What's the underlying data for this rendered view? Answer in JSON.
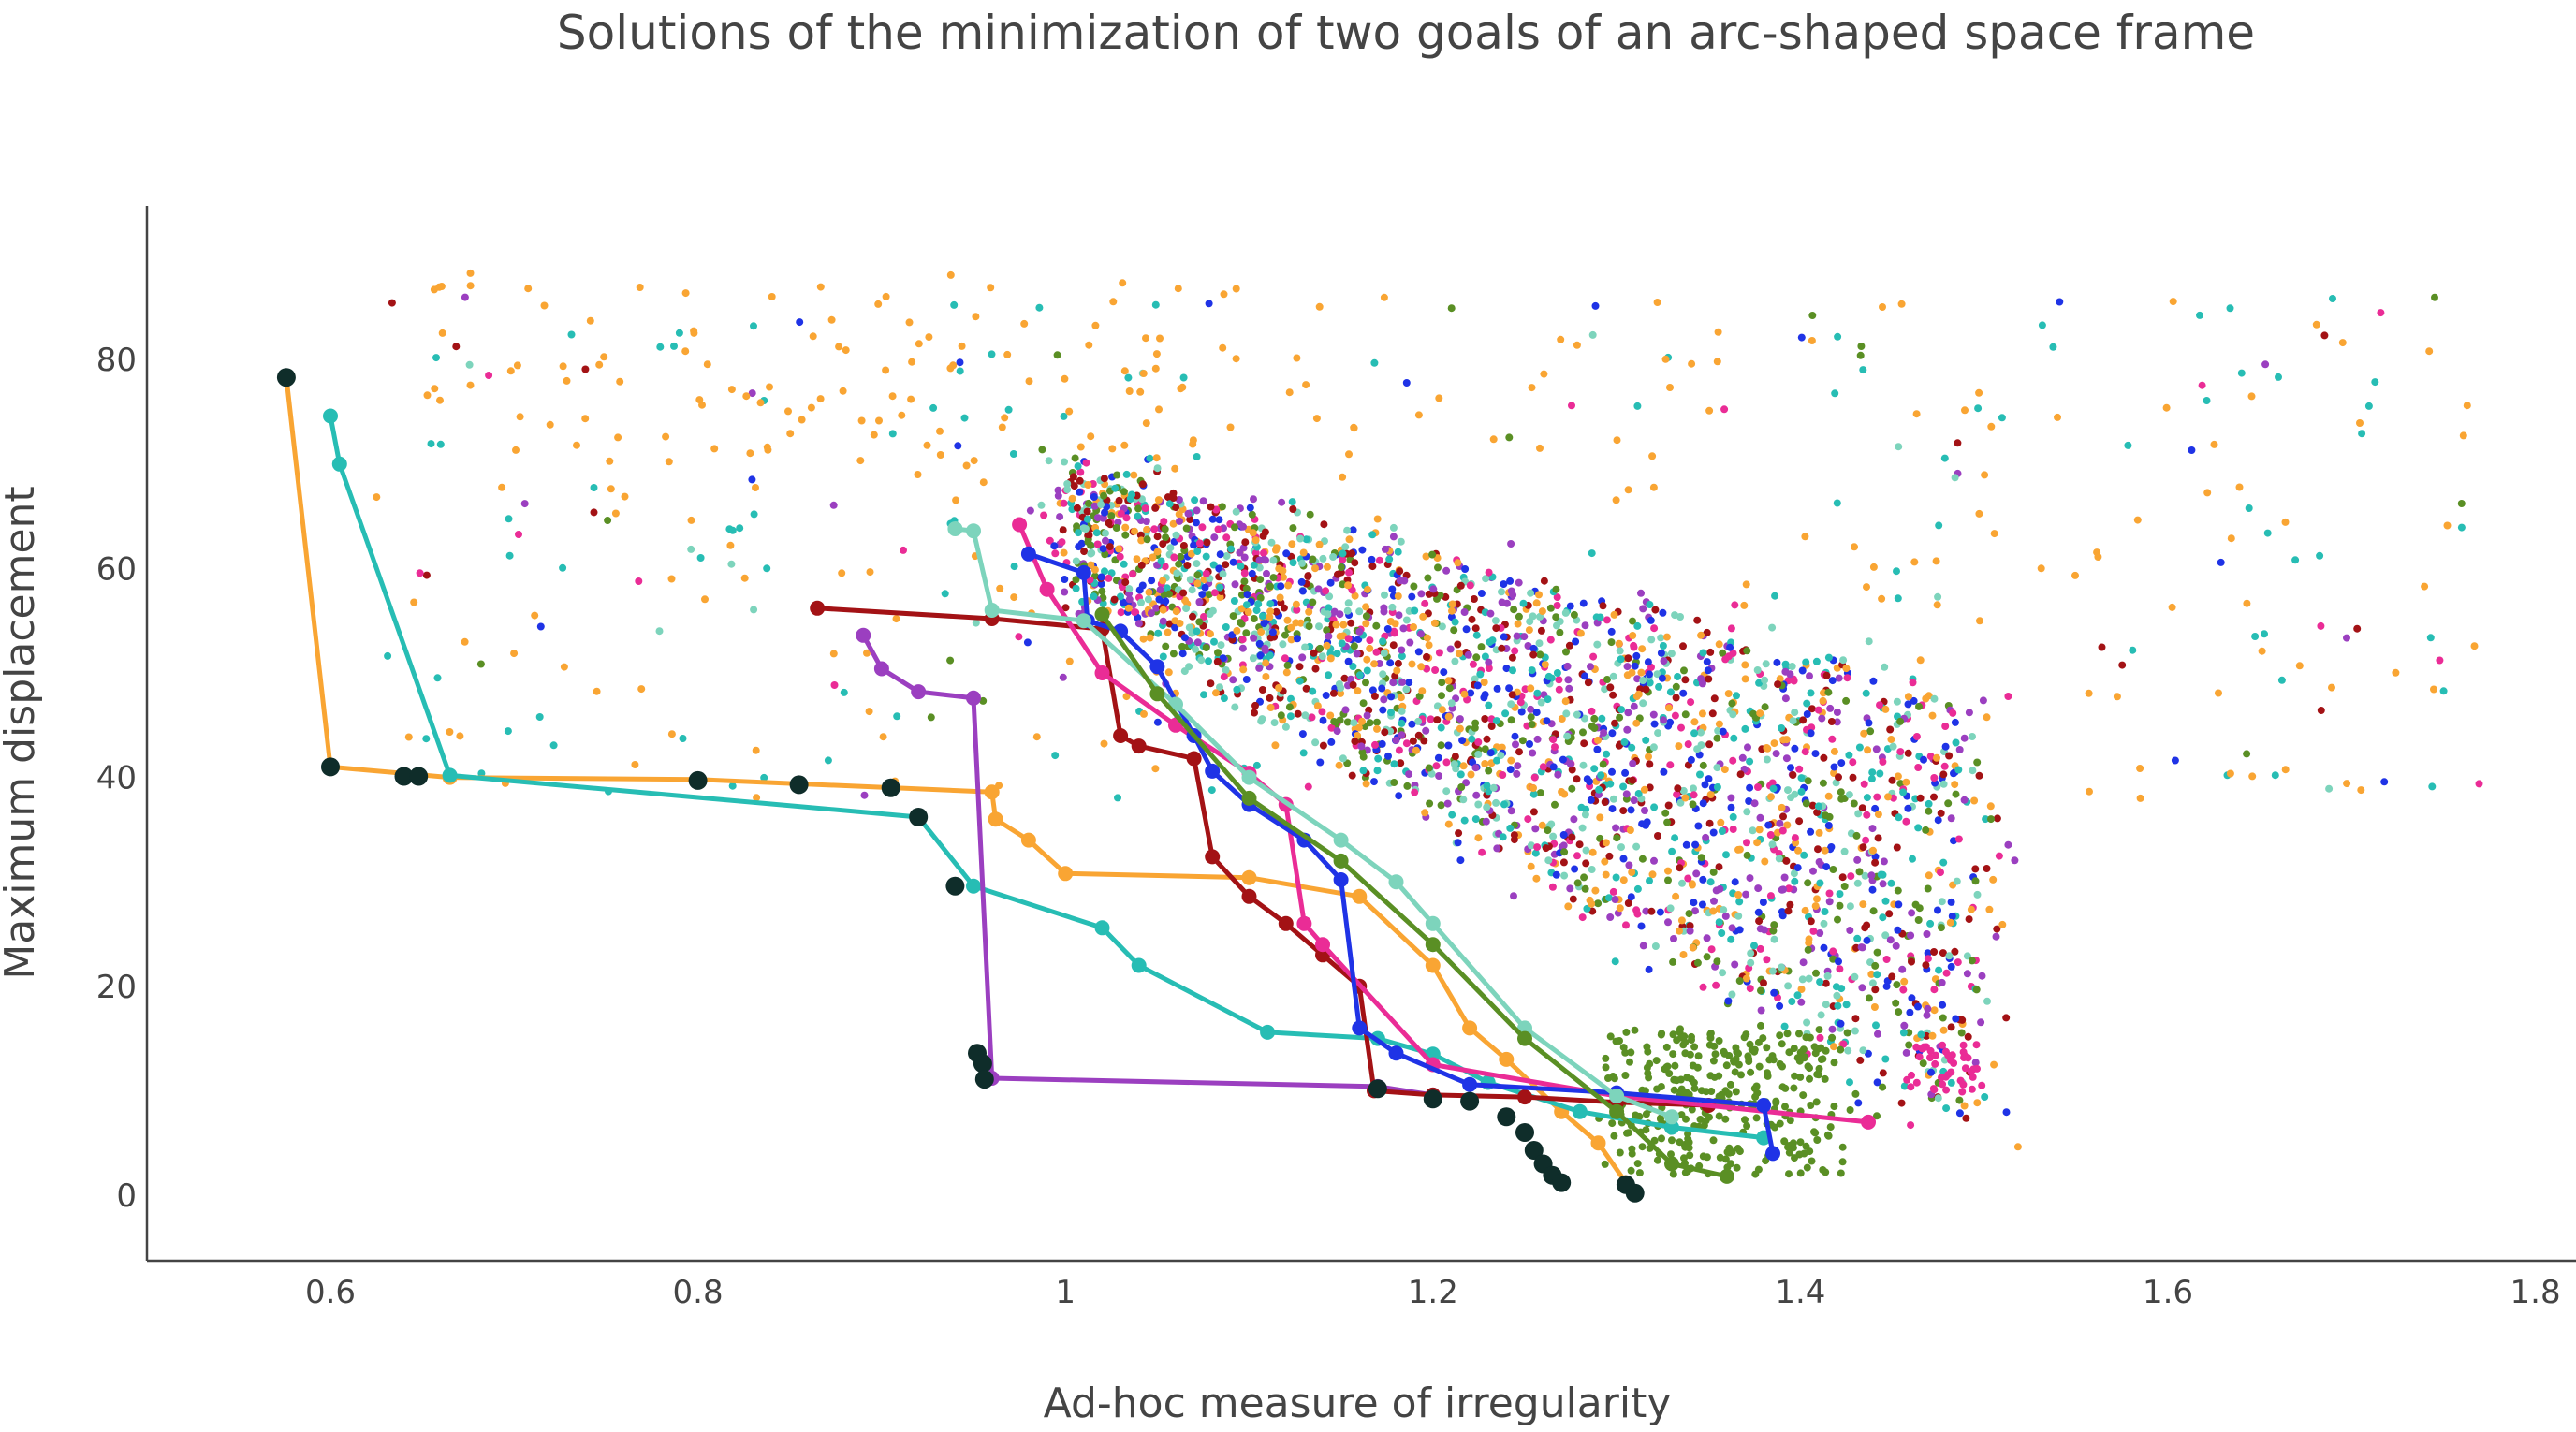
{
  "chart_data": {
    "type": "scatter",
    "title": "Solutions of the minimization of two goals of an arc-shaped space frame",
    "xlabel": "Ad-hoc measure of irregularity",
    "ylabel": "Maximum displacement",
    "xlim": [
      0.5,
      1.81
    ],
    "ylim": [
      -6,
      94
    ],
    "xticks": [
      0.6,
      0.8,
      1,
      1.2,
      1.4,
      1.6,
      1.8
    ],
    "xtick_labels": [
      "0.6",
      "0.8",
      "1",
      "1.2",
      "1.4",
      "1.6",
      "1.8"
    ],
    "yticks": [
      0,
      20,
      40,
      60,
      80
    ],
    "ytick_labels": [
      "0",
      "20",
      "40",
      "60",
      "80"
    ],
    "grid": false,
    "legend": "none",
    "front_series": [
      {
        "color": "#f9a533",
        "points": [
          [
            0.576,
            78.3
          ],
          [
            0.6,
            41.0
          ],
          [
            0.665,
            40.0
          ],
          [
            0.8,
            39.8
          ],
          [
            0.96,
            38.6
          ],
          [
            0.962,
            36.0
          ],
          [
            0.98,
            34.0
          ],
          [
            1.0,
            30.8
          ],
          [
            1.1,
            30.4
          ],
          [
            1.16,
            28.6
          ],
          [
            1.2,
            22.0
          ],
          [
            1.22,
            16.0
          ],
          [
            1.24,
            13.0
          ],
          [
            1.27,
            8.0
          ],
          [
            1.29,
            5.0
          ],
          [
            1.305,
            1.2
          ]
        ]
      },
      {
        "color": "#27bdb4",
        "points": [
          [
            0.6,
            74.6
          ],
          [
            0.605,
            70.0
          ],
          [
            0.665,
            40.2
          ],
          [
            0.92,
            36.2
          ],
          [
            0.95,
            29.6
          ],
          [
            1.02,
            25.6
          ],
          [
            1.04,
            22.0
          ],
          [
            1.11,
            15.6
          ],
          [
            1.17,
            15.0
          ],
          [
            1.2,
            13.5
          ],
          [
            1.23,
            10.8
          ],
          [
            1.28,
            8.0
          ],
          [
            1.33,
            6.5
          ],
          [
            1.38,
            5.5
          ]
        ]
      },
      {
        "color": "#9b3fc0",
        "points": [
          [
            0.89,
            53.6
          ],
          [
            0.9,
            50.4
          ],
          [
            0.92,
            48.2
          ],
          [
            0.95,
            47.6
          ],
          [
            0.96,
            11.2
          ],
          [
            1.17,
            10.4
          ],
          [
            1.2,
            9.6
          ]
        ]
      },
      {
        "color": "#a31215",
        "points": [
          [
            0.865,
            56.2
          ],
          [
            0.96,
            55.2
          ],
          [
            1.02,
            54.2
          ],
          [
            1.03,
            44.0
          ],
          [
            1.04,
            43.0
          ],
          [
            1.07,
            41.8
          ],
          [
            1.08,
            32.4
          ],
          [
            1.1,
            28.6
          ],
          [
            1.12,
            26.0
          ],
          [
            1.14,
            23.0
          ],
          [
            1.16,
            20.0
          ],
          [
            1.168,
            10.0
          ],
          [
            1.2,
            9.6
          ],
          [
            1.25,
            9.4
          ],
          [
            1.3,
            8.9
          ],
          [
            1.35,
            8.6
          ]
        ]
      },
      {
        "color": "#ea2c96",
        "points": [
          [
            0.975,
            64.2
          ],
          [
            0.99,
            58.0
          ],
          [
            1.02,
            50.0
          ],
          [
            1.06,
            45.0
          ],
          [
            1.1,
            40.4
          ],
          [
            1.12,
            37.4
          ],
          [
            1.13,
            26.0
          ],
          [
            1.14,
            24.0
          ],
          [
            1.2,
            12.5
          ],
          [
            1.3,
            9.5
          ],
          [
            1.437,
            7.0
          ]
        ]
      },
      {
        "color": "#1f33e6",
        "points": [
          [
            0.98,
            61.4
          ],
          [
            1.01,
            59.6
          ],
          [
            1.012,
            55.0
          ],
          [
            1.03,
            54.0
          ],
          [
            1.05,
            50.6
          ],
          [
            1.07,
            44.0
          ],
          [
            1.08,
            40.6
          ],
          [
            1.1,
            37.4
          ],
          [
            1.13,
            34.0
          ],
          [
            1.15,
            30.2
          ],
          [
            1.16,
            16.0
          ],
          [
            1.18,
            13.6
          ],
          [
            1.22,
            10.6
          ],
          [
            1.3,
            9.8
          ],
          [
            1.38,
            8.6
          ],
          [
            1.385,
            4.0
          ]
        ]
      },
      {
        "color": "#7dd4bc",
        "points": [
          [
            0.94,
            63.8
          ],
          [
            0.95,
            63.6
          ],
          [
            0.96,
            56.0
          ],
          [
            1.01,
            55.0
          ],
          [
            1.06,
            47.0
          ],
          [
            1.1,
            40.0
          ],
          [
            1.15,
            34.0
          ],
          [
            1.18,
            30.0
          ],
          [
            1.2,
            26.0
          ],
          [
            1.25,
            16.0
          ],
          [
            1.3,
            9.5
          ],
          [
            1.33,
            7.5
          ]
        ]
      },
      {
        "color": "#5a8f24",
        "points": [
          [
            1.02,
            55.6
          ],
          [
            1.05,
            48.0
          ],
          [
            1.1,
            38.0
          ],
          [
            1.15,
            32.0
          ],
          [
            1.2,
            24.0
          ],
          [
            1.25,
            15.0
          ],
          [
            1.3,
            8.0
          ],
          [
            1.33,
            3.0
          ],
          [
            1.36,
            1.8
          ]
        ]
      }
    ],
    "knee_series": {
      "color": "#0f2d2a",
      "points": [
        [
          0.576,
          78.3
        ],
        [
          0.6,
          41.0
        ],
        [
          0.64,
          40.1
        ],
        [
          0.648,
          40.1
        ],
        [
          0.8,
          39.7
        ],
        [
          0.855,
          39.3
        ],
        [
          0.905,
          39.0
        ],
        [
          0.92,
          36.2
        ],
        [
          0.94,
          29.6
        ],
        [
          0.952,
          13.6
        ],
        [
          0.955,
          12.6
        ],
        [
          0.956,
          11.1
        ],
        [
          1.17,
          10.2
        ],
        [
          1.2,
          9.2
        ],
        [
          1.22,
          9.0
        ],
        [
          1.24,
          7.5
        ],
        [
          1.25,
          6.0
        ],
        [
          1.255,
          4.3
        ],
        [
          1.26,
          3.0
        ],
        [
          1.265,
          1.9
        ],
        [
          1.27,
          1.2
        ],
        [
          1.305,
          1.0
        ],
        [
          1.31,
          0.2
        ]
      ]
    },
    "scatter_colors": [
      "#f9a533",
      "#27bdb4",
      "#9b3fc0",
      "#a31215",
      "#ea2c96",
      "#1f33e6",
      "#7dd4bc",
      "#5a8f24"
    ]
  }
}
